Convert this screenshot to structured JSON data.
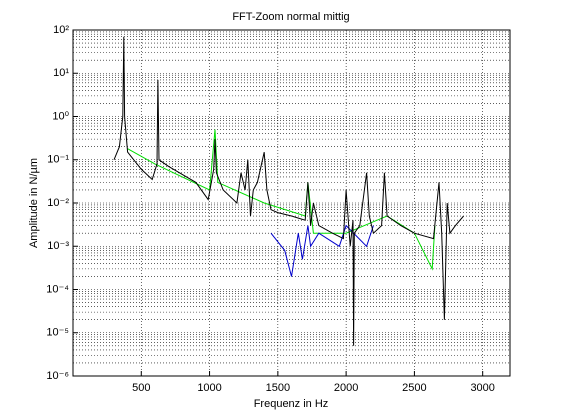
{
  "chart_data": {
    "type": "line",
    "title": "FFT-Zoom normal mittig",
    "xlabel": "Frequenz in Hz",
    "ylabel": "Amplitude in N/µm",
    "xlim": [
      0,
      3200
    ],
    "xticks": [
      500,
      1000,
      1500,
      2000,
      2500,
      3000
    ],
    "ylim": [
      1e-06,
      100
    ],
    "ylog": true,
    "grid": true,
    "yticks": [
      {
        "value": 1e-06,
        "label": "10⁻⁶"
      },
      {
        "value": 1e-05,
        "label": "10⁻⁵"
      },
      {
        "value": 0.0001,
        "label": "10⁻⁴"
      },
      {
        "value": 0.001,
        "label": "10⁻³"
      },
      {
        "value": 0.01,
        "label": "10⁻²"
      },
      {
        "value": 0.1,
        "label": "10⁻¹"
      },
      {
        "value": 1,
        "label": "10⁰"
      },
      {
        "value": 10,
        "label": "10¹"
      },
      {
        "value": 100,
        "label": "10²"
      }
    ],
    "series": [
      {
        "color": "#00dd00",
        "x": [
          400,
          600,
          1000,
          1040,
          1060,
          1400,
          1700,
          1720,
          1760,
          2000,
          2300,
          2500,
          2630,
          2650
        ],
        "values": [
          0.18,
          0.08,
          0.02,
          0.5,
          0.03,
          0.01,
          0.005,
          0.03,
          0.002,
          0.002,
          0.005,
          0.002,
          0.0003,
          0.003
        ]
      },
      {
        "color": "#0000cc",
        "x": [
          1450,
          1550,
          1600,
          1650,
          1680,
          1720,
          1740,
          1800,
          1950,
          2000,
          2150,
          2200
        ],
        "values": [
          0.002,
          0.0008,
          0.0002,
          0.002,
          0.0005,
          0.003,
          0.001,
          0.002,
          0.001,
          0.003,
          0.001,
          0.003
        ]
      },
      {
        "color": "#000000",
        "x": [
          300,
          340,
          365,
          372,
          378,
          400,
          500,
          580,
          615,
          622,
          630,
          700,
          900,
          990,
          1030,
          1040,
          1050,
          1100,
          1200,
          1230,
          1260,
          1280,
          1300,
          1320,
          1350,
          1400,
          1420,
          1450,
          1500,
          1600,
          1700,
          1720,
          1740,
          1760,
          1800,
          1900,
          1980,
          2000,
          2030,
          2050,
          2055,
          2060,
          2100,
          2150,
          2170,
          2200,
          2260,
          2280,
          2300,
          2400,
          2500,
          2640,
          2680,
          2700,
          2720,
          2740,
          2760,
          2800,
          2860
        ],
        "values": [
          0.1,
          0.2,
          1,
          70,
          1,
          0.15,
          0.06,
          0.035,
          0.08,
          7,
          0.1,
          0.07,
          0.03,
          0.012,
          0.06,
          0.3,
          0.05,
          0.02,
          0.01,
          0.05,
          0.02,
          0.1,
          0.005,
          0.02,
          0.03,
          0.15,
          0.02,
          0.007,
          0.006,
          0.005,
          0.004,
          0.03,
          0.003,
          0.01,
          0.003,
          0.002,
          0.0015,
          0.02,
          0.001,
          0.004,
          5e-06,
          0.002,
          0.003,
          0.05,
          0.005,
          0.002,
          0.003,
          0.05,
          0.005,
          0.003,
          0.002,
          0.0015,
          0.03,
          0.002,
          2e-05,
          0.01,
          0.002,
          0.003,
          0.005
        ]
      }
    ]
  }
}
